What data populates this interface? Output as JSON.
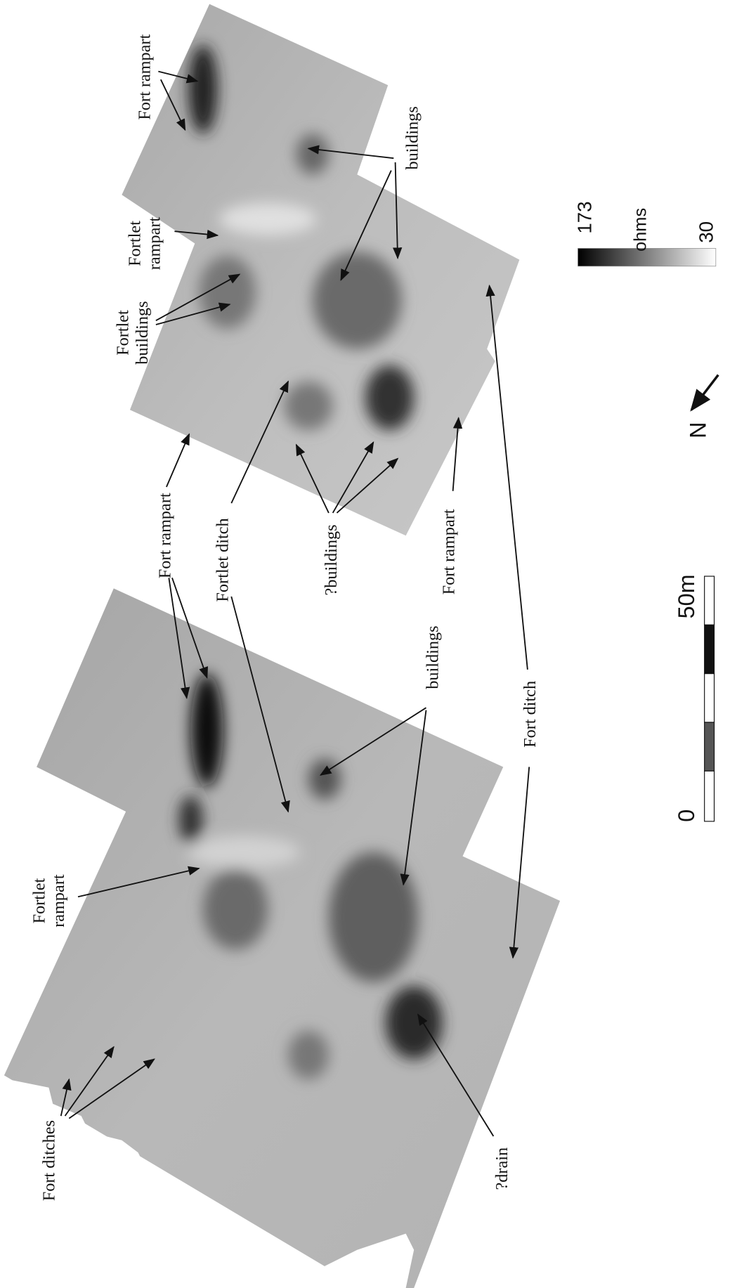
{
  "annotations": [
    {
      "lines": [
        "Fort rampart"
      ]
    },
    {
      "lines": [
        "buildings"
      ]
    },
    {
      "lines": [
        "Fortlet",
        "rampart"
      ]
    },
    {
      "lines": [
        "Fortlet",
        "buildings"
      ]
    },
    {
      "lines": [
        "Fort rampart"
      ]
    },
    {
      "lines": [
        "Fortlet ditch"
      ]
    },
    {
      "lines": [
        "?buildings"
      ]
    },
    {
      "lines": [
        "Fort rampart"
      ]
    },
    {
      "lines": [
        "buildings"
      ]
    },
    {
      "lines": [
        "Fort ditch"
      ]
    },
    {
      "lines": [
        "Fortlet",
        "rampart"
      ]
    },
    {
      "lines": [
        "?drain"
      ]
    },
    {
      "lines": [
        "Fort ditches"
      ]
    }
  ],
  "legend": {
    "max": "173",
    "unit": "ohms",
    "min": "30"
  },
  "north": "N",
  "scale_bar": {
    "start": "0",
    "end": "50m"
  }
}
